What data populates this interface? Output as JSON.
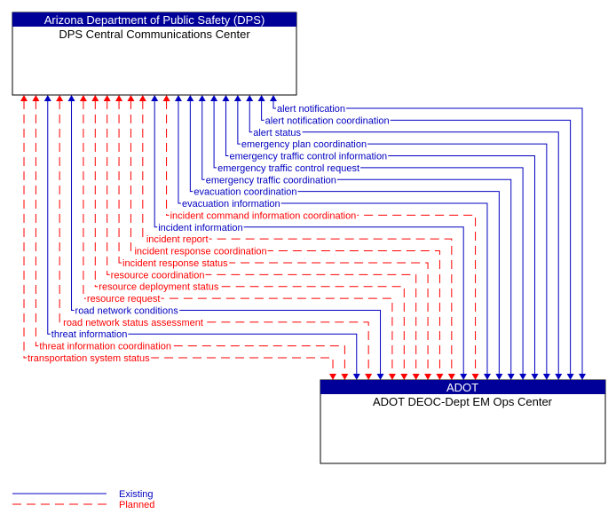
{
  "source_box": {
    "header": "Arizona Department of Public Safety (DPS)",
    "name": "DPS Central Communications Center"
  },
  "target_box": {
    "header": "ADOT",
    "name": "ADOT DEOC-Dept EM Ops Center"
  },
  "colors": {
    "header_bg": "#000099",
    "existing": "#0000C0",
    "planned": "#FF0000"
  },
  "flows": [
    {
      "label": "alert notification",
      "status": "existing"
    },
    {
      "label": "alert notification coordination",
      "status": "existing"
    },
    {
      "label": "alert status",
      "status": "existing"
    },
    {
      "label": "emergency plan coordination",
      "status": "existing"
    },
    {
      "label": "emergency traffic control information",
      "status": "existing"
    },
    {
      "label": "emergency traffic control request",
      "status": "existing"
    },
    {
      "label": "emergency traffic coordination",
      "status": "existing"
    },
    {
      "label": "evacuation coordination",
      "status": "existing"
    },
    {
      "label": "evacuation information",
      "status": "existing"
    },
    {
      "label": "incident command information coordination",
      "status": "planned"
    },
    {
      "label": "incident information",
      "status": "existing"
    },
    {
      "label": "incident report",
      "status": "planned"
    },
    {
      "label": "incident response coordination",
      "status": "planned"
    },
    {
      "label": "incident response status",
      "status": "planned"
    },
    {
      "label": "resource coordination",
      "status": "planned"
    },
    {
      "label": "resource deployment status",
      "status": "planned"
    },
    {
      "label": "resource request",
      "status": "planned"
    },
    {
      "label": "road network conditions",
      "status": "existing"
    },
    {
      "label": "road network status assessment",
      "status": "planned"
    },
    {
      "label": "threat information",
      "status": "existing"
    },
    {
      "label": "threat information coordination",
      "status": "planned"
    },
    {
      "label": "transportation system status",
      "status": "planned"
    }
  ],
  "legend": {
    "existing": "Existing",
    "planned": "Planned"
  }
}
